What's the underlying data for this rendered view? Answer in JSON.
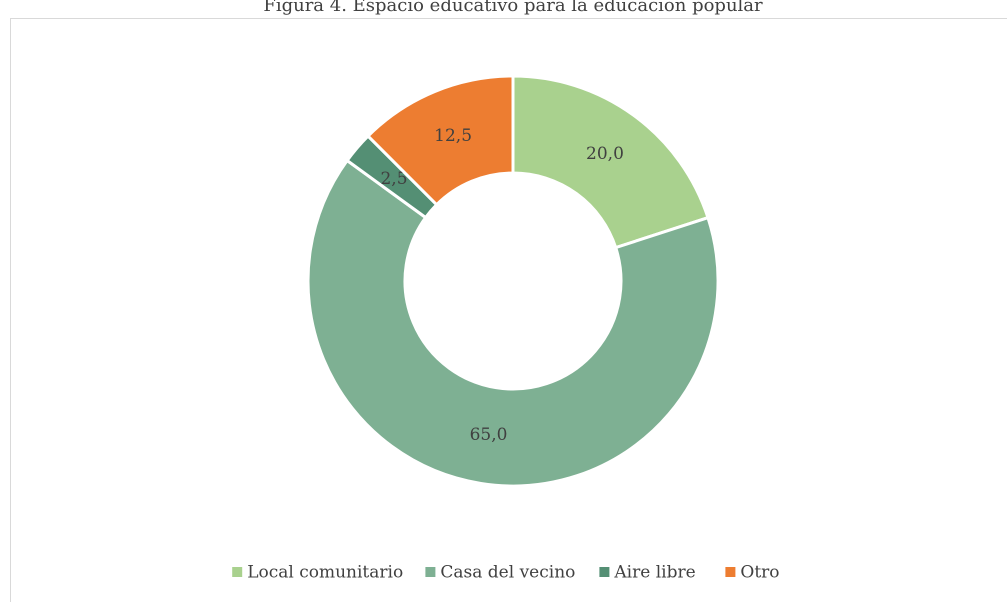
{
  "chart_data": {
    "type": "donut",
    "title": "Figura 4. Espacio educativo para la educación popular",
    "categories": [
      "Local comunitario",
      "Casa del vecino",
      "Aire libre",
      "Otro"
    ],
    "values": [
      20,
      65,
      2.5,
      12.5
    ],
    "value_labels": [
      "20,0",
      "65,0",
      "2,5",
      "12,5"
    ],
    "colors": [
      "#a9d18e",
      "#7eb093",
      "#548f74",
      "#ed7d31"
    ],
    "legend": "bottom"
  }
}
